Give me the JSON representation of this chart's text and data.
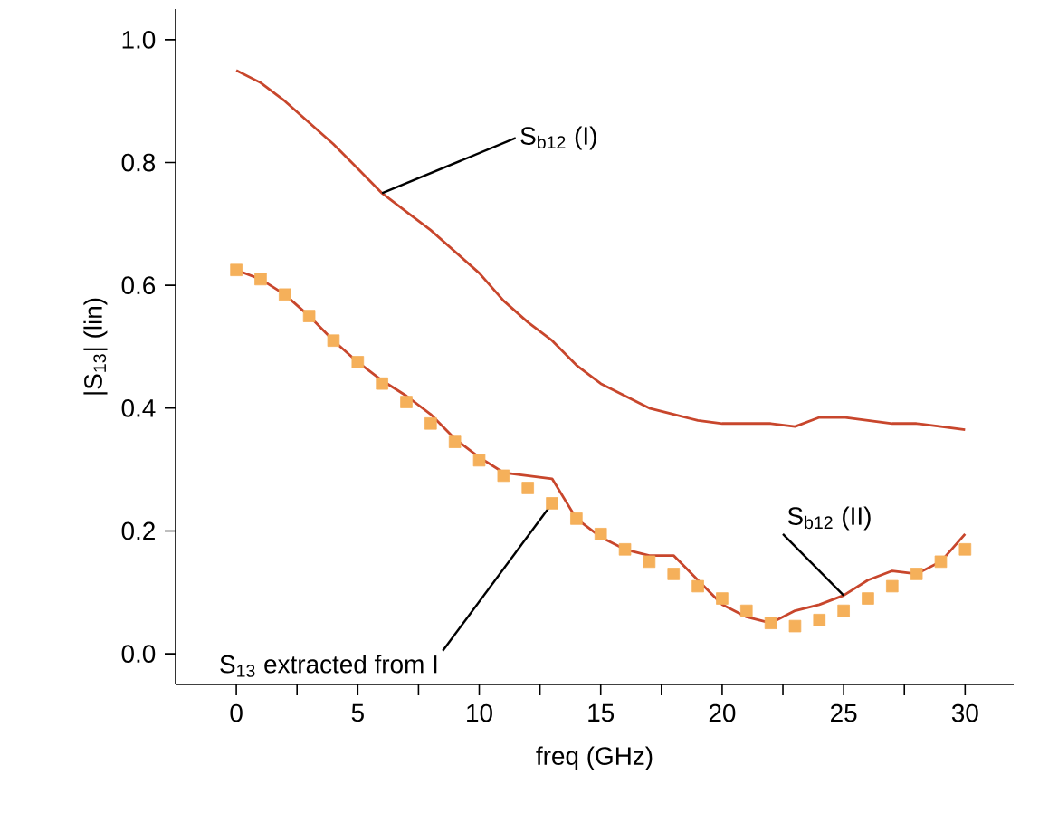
{
  "chart_data": {
    "type": "line",
    "xlabel": "freq (GHz)",
    "ylabel": "|S$_{13}$| (lin)",
    "xlim": [
      -2.5,
      32
    ],
    "ylim": [
      -0.05,
      1.05
    ],
    "xticks": [
      0,
      5,
      10,
      15,
      20,
      25,
      30,
      {
        "value": 2.5,
        "label": null
      },
      {
        "value": 7.5,
        "label": null
      },
      {
        "value": 12.5,
        "label": null
      },
      {
        "value": 17.5,
        "label": null
      },
      {
        "value": 22.5,
        "label": null
      },
      {
        "value": 27.5,
        "label": null
      }
    ],
    "yticks": [
      {
        "value": 0,
        "label": "0.0"
      },
      {
        "value": 0.2,
        "label": "0.2"
      },
      {
        "value": 0.4,
        "label": "0.4"
      },
      {
        "value": 0.6,
        "label": "0.6"
      },
      {
        "value": 0.8,
        "label": "0.8"
      },
      {
        "value": 1.0,
        "label": "1.0"
      }
    ],
    "grid": false,
    "line_style": "solid",
    "x": [
      0,
      1,
      2,
      3,
      4,
      5,
      6,
      7,
      8,
      9,
      10,
      11,
      12,
      13,
      14,
      15,
      16,
      17,
      18,
      19,
      20,
      21,
      22,
      23,
      24,
      25,
      26,
      27,
      28,
      29,
      30
    ],
    "series": [
      {
        "color": "#c8462c",
        "marker": "none",
        "values": [
          0.95,
          0.93,
          0.9,
          0.865,
          0.83,
          0.79,
          0.75,
          0.72,
          0.69,
          0.655,
          0.62,
          0.575,
          0.54,
          0.51,
          0.47,
          0.44,
          0.42,
          0.4,
          0.39,
          0.38,
          0.375,
          0.375,
          0.375,
          0.37,
          0.385,
          0.385,
          0.38,
          0.375,
          0.375,
          0.37,
          0.365
        ]
      },
      {
        "color": "#c8462c",
        "marker": "none",
        "values": [
          0.625,
          0.61,
          0.585,
          0.55,
          0.51,
          0.475,
          0.445,
          0.42,
          0.39,
          0.35,
          0.32,
          0.295,
          0.29,
          0.285,
          0.22,
          0.19,
          0.17,
          0.16,
          0.16,
          0.12,
          0.08,
          0.06,
          0.05,
          0.07,
          0.08,
          0.095,
          0.12,
          0.135,
          0.13,
          0.15,
          0.195
        ]
      },
      {
        "type": "scatter",
        "color": "#f5b05a",
        "marker": "square",
        "values": [
          0.625,
          0.61,
          0.585,
          0.55,
          0.51,
          0.475,
          0.44,
          0.41,
          0.375,
          0.345,
          0.315,
          0.29,
          0.27,
          0.245,
          0.22,
          0.195,
          0.17,
          0.15,
          0.13,
          0.11,
          0.09,
          0.07,
          0.05,
          0.045,
          0.055,
          0.07,
          0.09,
          0.11,
          0.13,
          0.15,
          0.17
        ]
      }
    ],
    "annotations": [
      {
        "text": "S$_{b12}$ (I)",
        "x": 6,
        "y": 0.75
      },
      {
        "text": "S$_{b12}$ (II)",
        "x": 25,
        "y": 0.095
      },
      {
        "text": "S$_{13}$ extracted from I",
        "x": 13,
        "y": 0.245
      }
    ]
  }
}
